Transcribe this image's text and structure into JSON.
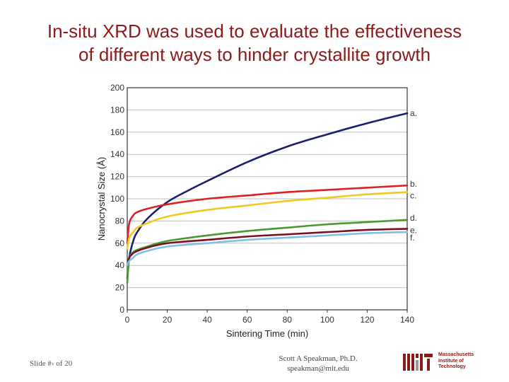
{
  "slide": {
    "title_line1": "In-situ XRD was used to evaluate the effectiveness",
    "title_line2": "of different ways to hinder crystallite growth"
  },
  "footer": {
    "slide_number": "Slide #› of 20",
    "author": "Scott A Speakman, Ph.D.",
    "email": "speakman@mit.edu",
    "logo_line1": "Massachusetts",
    "logo_line2": "Institute of",
    "logo_line3": "Technology",
    "logo_color": "#8b1a1a"
  },
  "chart_data": {
    "type": "line",
    "title": "",
    "xlabel": "Sintering Time (min)",
    "ylabel": "Nanocrystal Size (Å)",
    "xlim": [
      0,
      140
    ],
    "ylim": [
      0,
      200
    ],
    "xticks": [
      0,
      20,
      40,
      60,
      80,
      100,
      120,
      140
    ],
    "yticks": [
      0,
      20,
      40,
      60,
      80,
      100,
      120,
      140,
      160,
      180,
      200
    ],
    "grid": "horizontal",
    "series": [
      {
        "name": "a.",
        "color": "#1a1f6e",
        "x": [
          0,
          1,
          3,
          5,
          10,
          20,
          30,
          40,
          60,
          80,
          100,
          120,
          140
        ],
        "y": [
          28,
          47,
          62,
          70,
          82,
          97,
          107,
          116,
          133,
          147,
          158,
          168,
          177
        ]
      },
      {
        "name": "b.",
        "color": "#e02020",
        "x": [
          0,
          1,
          3,
          5,
          10,
          20,
          40,
          60,
          80,
          100,
          120,
          140
        ],
        "y": [
          60,
          78,
          85,
          88,
          91,
          95,
          100,
          103,
          106,
          108,
          110,
          112
        ]
      },
      {
        "name": "c.",
        "color": "#f0c820",
        "x": [
          0,
          1,
          3,
          5,
          10,
          20,
          40,
          60,
          80,
          100,
          120,
          140
        ],
        "y": [
          55,
          65,
          70,
          74,
          78,
          84,
          90,
          94,
          98,
          101,
          104,
          106
        ]
      },
      {
        "name": "d.",
        "color": "#4a9a30",
        "x": [
          0,
          1,
          3,
          5,
          10,
          20,
          40,
          60,
          80,
          100,
          120,
          140
        ],
        "y": [
          24,
          46,
          52,
          54,
          57,
          62,
          67,
          71,
          74,
          77,
          79,
          81
        ]
      },
      {
        "name": "e.",
        "color": "#7a1020",
        "x": [
          0,
          1,
          3,
          5,
          10,
          20,
          40,
          60,
          80,
          100,
          120,
          140
        ],
        "y": [
          40,
          47,
          51,
          53,
          56,
          60,
          63,
          66,
          68,
          70,
          72,
          73
        ]
      },
      {
        "name": "f.",
        "color": "#80c0e8",
        "x": [
          0,
          1,
          3,
          5,
          10,
          20,
          40,
          60,
          80,
          100,
          120,
          140
        ],
        "y": [
          40,
          44,
          47,
          50,
          53,
          57,
          60,
          63,
          65,
          67,
          69,
          70
        ]
      }
    ]
  }
}
